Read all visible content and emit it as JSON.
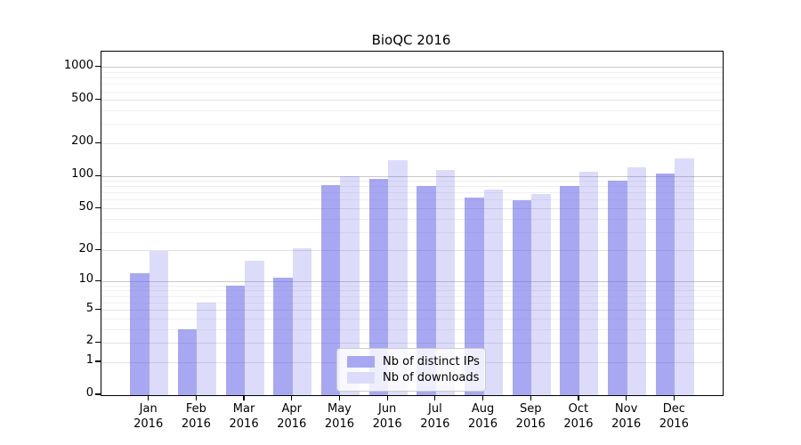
{
  "chart_data": {
    "type": "bar",
    "title": "BioQC 2016",
    "categories": [
      "Jan 2016",
      "Feb 2016",
      "Mar 2016",
      "Apr 2016",
      "May 2016",
      "Jun 2016",
      "Jul 2016",
      "Aug 2016",
      "Sep 2016",
      "Oct 2016",
      "Nov 2016",
      "Dec 2016"
    ],
    "series": [
      {
        "name": "Nb of distinct IPs",
        "values": [
          12,
          3,
          9,
          11,
          83,
          94,
          82,
          64,
          60,
          82,
          92,
          107
        ],
        "color": "rgba(102,102,232,0.57)",
        "legend_color": "#a8a8f2"
      },
      {
        "name": "Nb of downloads",
        "values": [
          20,
          6,
          16,
          21,
          101,
          140,
          115,
          75,
          68,
          111,
          122,
          145
        ],
        "color": "rgba(102,102,232,0.23)",
        "legend_color": "#dcdcfa"
      }
    ],
    "yticks": [
      0,
      1,
      2,
      5,
      10,
      20,
      50,
      100,
      200,
      500,
      1000
    ],
    "scale": "log1p",
    "ylim": [
      0,
      1400
    ],
    "grid": true,
    "legend_position": "lower center",
    "xlabel": "",
    "ylabel": ""
  }
}
